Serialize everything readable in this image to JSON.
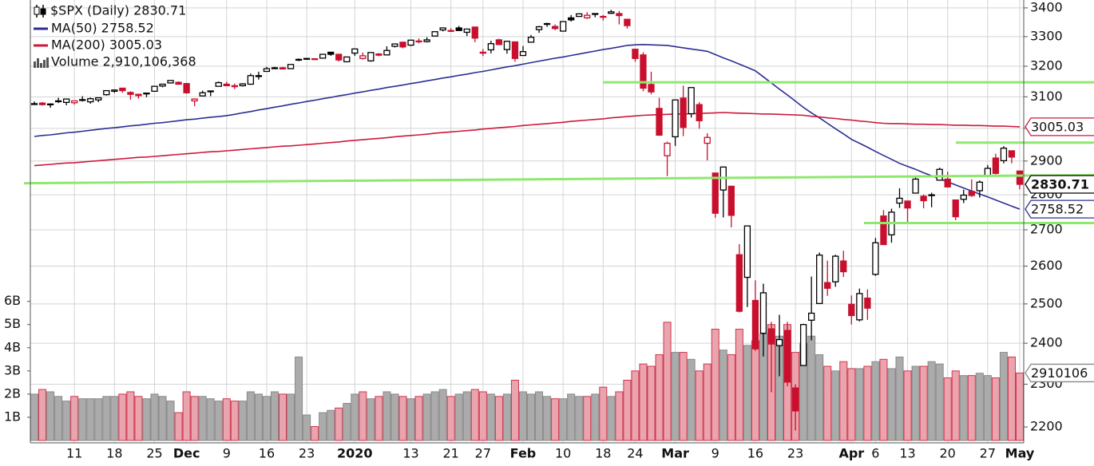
{
  "chart_data": {
    "type": "candlestick",
    "categories": [
      null,
      null,
      null,
      null,
      null,
      "11",
      null,
      null,
      null,
      null,
      "18",
      null,
      null,
      null,
      null,
      "25",
      null,
      null,
      null,
      "Dec",
      null,
      null,
      null,
      null,
      "9",
      null,
      null,
      null,
      null,
      "16",
      null,
      null,
      null,
      null,
      "23",
      null,
      null,
      null,
      null,
      null,
      "2020",
      null,
      null,
      null,
      null,
      null,
      null,
      "13",
      null,
      null,
      null,
      null,
      "21",
      null,
      null,
      null,
      "27",
      null,
      null,
      null,
      null,
      "Feb",
      null,
      null,
      null,
      null,
      "10",
      null,
      null,
      null,
      null,
      "18",
      null,
      null,
      null,
      "24",
      null,
      null,
      null,
      null,
      "Mar",
      null,
      null,
      null,
      null,
      "9",
      null,
      null,
      null,
      null,
      "16",
      null,
      null,
      null,
      null,
      "23",
      null,
      null,
      null,
      null,
      null,
      null,
      "Apr",
      null,
      null,
      "6",
      null,
      null,
      null,
      "13",
      null,
      null,
      null,
      null,
      "20",
      null,
      null,
      null,
      null,
      "27",
      null,
      null,
      null,
      "May"
    ],
    "price": {
      "name": "$SPX (Daily) 2830.71",
      "tag": "2830.71",
      "up_color": "#000000",
      "down_color": "#c8102e",
      "ohlc": [
        [
          3078,
          3085,
          3074,
          3078
        ],
        [
          3080,
          3083,
          3072,
          3075
        ],
        [
          3076,
          3079,
          3065,
          3077
        ],
        [
          3087,
          3097,
          3080,
          3085
        ],
        [
          3082,
          3093,
          3073,
          3093
        ],
        [
          3081,
          3088,
          3075,
          3087
        ],
        [
          3089,
          3102,
          3085,
          3091
        ],
        [
          3084,
          3098,
          3078,
          3094
        ],
        [
          3090,
          3098,
          3083,
          3097
        ],
        [
          3107,
          3120,
          3104,
          3120
        ],
        [
          3118,
          3124,
          3113,
          3122
        ],
        [
          3128,
          3128,
          3113,
          3120
        ],
        [
          3114,
          3118,
          3091,
          3108
        ],
        [
          3108,
          3110,
          3094,
          3104
        ],
        [
          3112,
          3113,
          3099,
          3110
        ],
        [
          3118,
          3134,
          3117,
          3134
        ],
        [
          3135,
          3142,
          3131,
          3141
        ],
        [
          3145,
          3154,
          3143,
          3153
        ],
        [
          3147,
          3150,
          3139,
          3141
        ],
        [
          3143,
          3145,
          3110,
          3113
        ],
        [
          3087,
          3095,
          3070,
          3093
        ],
        [
          3103,
          3120,
          3102,
          3113
        ],
        [
          3119,
          3120,
          3102,
          3117
        ],
        [
          3134,
          3150,
          3134,
          3146
        ],
        [
          3141,
          3149,
          3135,
          3136
        ],
        [
          3136,
          3143,
          3125,
          3133
        ],
        [
          3136,
          3144,
          3133,
          3142
        ],
        [
          3141,
          3176,
          3139,
          3169
        ],
        [
          3166,
          3182,
          3156,
          3169
        ],
        [
          3183,
          3198,
          3182,
          3192
        ],
        [
          3195,
          3198,
          3191,
          3192
        ],
        [
          3195,
          3198,
          3191,
          3191
        ],
        [
          3192,
          3206,
          3192,
          3206
        ],
        [
          3223,
          3226,
          3217,
          3221
        ],
        [
          3226,
          3227,
          3222,
          3224
        ],
        [
          3225,
          3226,
          3221,
          3223
        ],
        [
          3227,
          3240,
          3227,
          3240
        ],
        [
          3247,
          3247,
          3235,
          3240
        ],
        [
          3240,
          3240,
          3216,
          3221
        ],
        [
          3215,
          3231,
          3213,
          3231
        ],
        [
          3244,
          3258,
          3235,
          3258
        ],
        [
          3226,
          3246,
          3222,
          3235
        ],
        [
          3218,
          3246,
          3215,
          3246
        ],
        [
          3241,
          3244,
          3233,
          3237
        ],
        [
          3238,
          3267,
          3236,
          3253
        ],
        [
          3267,
          3275,
          3263,
          3275
        ],
        [
          3281,
          3282,
          3260,
          3265
        ],
        [
          3271,
          3288,
          3268,
          3288
        ],
        [
          3285,
          3294,
          3277,
          3283
        ],
        [
          3283,
          3298,
          3280,
          3289
        ],
        [
          3302,
          3317,
          3302,
          3317
        ],
        [
          3323,
          3330,
          3318,
          3330
        ],
        [
          3321,
          3329,
          3316,
          3321
        ],
        [
          3330,
          3337,
          3321,
          3321
        ],
        [
          3315,
          3326,
          3302,
          3326
        ],
        [
          3333,
          3334,
          3281,
          3295
        ],
        [
          3247,
          3258,
          3234,
          3244
        ],
        [
          3255,
          3286,
          3243,
          3276
        ],
        [
          3289,
          3293,
          3271,
          3273
        ],
        [
          3256,
          3286,
          3242,
          3284
        ],
        [
          3282,
          3282,
          3215,
          3226
        ],
        [
          3236,
          3268,
          3235,
          3249
        ],
        [
          3281,
          3306,
          3281,
          3298
        ],
        [
          3324,
          3337,
          3313,
          3334
        ],
        [
          3344,
          3348,
          3334,
          3345
        ],
        [
          3335,
          3342,
          3322,
          3328
        ],
        [
          3319,
          3352,
          3317,
          3352
        ],
        [
          3365,
          3375,
          3352,
          3358
        ],
        [
          3370,
          3381,
          3369,
          3379
        ],
        [
          3365,
          3385,
          3361,
          3374
        ],
        [
          3378,
          3381,
          3367,
          3380
        ],
        [
          3370,
          3375,
          3356,
          3370
        ],
        [
          3381,
          3393,
          3379,
          3386
        ],
        [
          3380,
          3389,
          3342,
          3373
        ],
        [
          3360,
          3360,
          3328,
          3338
        ],
        [
          3257,
          3259,
          3215,
          3226
        ],
        [
          3238,
          3247,
          3118,
          3128
        ],
        [
          3140,
          3182,
          3108,
          3116
        ],
        [
          3063,
          3097,
          2977,
          2979
        ],
        [
          2916,
          2959,
          2855,
          2954
        ],
        [
          2974,
          3091,
          2946,
          3090
        ],
        [
          3096,
          3136,
          2976,
          3003
        ],
        [
          3046,
          3130,
          3034,
          3130
        ],
        [
          3075,
          3083,
          2999,
          3024
        ],
        [
          2954,
          2985,
          2902,
          2972
        ],
        [
          2864,
          2864,
          2734,
          2747
        ],
        [
          2814,
          2883,
          2735,
          2882
        ],
        [
          2825,
          2825,
          2707,
          2741
        ],
        [
          2631,
          2660,
          2478,
          2481
        ],
        [
          2570,
          2711,
          2492,
          2711
        ],
        [
          2509,
          2562,
          2381,
          2386
        ],
        [
          2425,
          2553,
          2367,
          2529
        ],
        [
          2436,
          2454,
          2281,
          2398
        ],
        [
          2394,
          2472,
          2319,
          2409
        ],
        [
          2432,
          2454,
          2295,
          2305
        ],
        [
          2291,
          2300,
          2192,
          2237
        ],
        [
          2345,
          2449,
          2345,
          2447
        ],
        [
          2458,
          2572,
          2407,
          2476
        ],
        [
          2501,
          2637,
          2501,
          2630
        ],
        [
          2556,
          2615,
          2521,
          2541
        ],
        [
          2558,
          2631,
          2545,
          2627
        ],
        [
          2614,
          2642,
          2571,
          2585
        ],
        [
          2499,
          2522,
          2447,
          2470
        ],
        [
          2459,
          2540,
          2455,
          2527
        ],
        [
          2515,
          2538,
          2459,
          2489
        ],
        [
          2578,
          2677,
          2574,
          2664
        ],
        [
          2739,
          2756,
          2658,
          2659
        ],
        [
          2686,
          2760,
          2664,
          2750
        ],
        [
          2776,
          2819,
          2762,
          2790
        ],
        [
          2782,
          2782,
          2721,
          2762
        ],
        [
          2805,
          2851,
          2805,
          2846
        ],
        [
          2796,
          2801,
          2761,
          2783
        ],
        [
          2800,
          2806,
          2764,
          2800
        ],
        [
          2843,
          2880,
          2843,
          2875
        ],
        [
          2846,
          2868,
          2821,
          2823
        ],
        [
          2785,
          2786,
          2727,
          2737
        ],
        [
          2787,
          2815,
          2776,
          2799
        ],
        [
          2810,
          2845,
          2794,
          2798
        ],
        [
          2812,
          2842,
          2792,
          2837
        ],
        [
          2855,
          2888,
          2852,
          2878
        ],
        [
          2909,
          2922,
          2860,
          2863
        ],
        [
          2901,
          2945,
          2893,
          2939
        ],
        [
          2931,
          2931,
          2893,
          2912
        ],
        [
          2870,
          2870,
          2816,
          2830.71
        ]
      ]
    },
    "series": [
      {
        "name": "MA(50) 2758.52",
        "tag": "2758.52",
        "color": "#2b2f92",
        "values": [
          2975,
          2978,
          2980,
          2983,
          2986,
          2988,
          2991,
          2994,
          2997,
          3000,
          3002,
          3005,
          3008,
          3010,
          3013,
          3016,
          3018,
          3021,
          3024,
          3027,
          3029,
          3032,
          3035,
          3037,
          3040,
          3044,
          3049,
          3053,
          3058,
          3062,
          3067,
          3071,
          3076,
          3080,
          3085,
          3089,
          3094,
          3098,
          3103,
          3107,
          3112,
          3116,
          3121,
          3125,
          3130,
          3134,
          3138,
          3143,
          3147,
          3152,
          3156,
          3161,
          3165,
          3170,
          3174,
          3179,
          3183,
          3188,
          3193,
          3198,
          3202,
          3207,
          3212,
          3217,
          3222,
          3227,
          3231,
          3236,
          3241,
          3246,
          3251,
          3256,
          3260,
          3265,
          3270,
          3272,
          3273,
          3272,
          3271,
          3270,
          3266,
          3262,
          3258,
          3254,
          3250,
          3239,
          3228,
          3218,
          3207,
          3196,
          3185,
          3165,
          3145,
          3125,
          3106,
          3086,
          3066,
          3049,
          3033,
          3016,
          2999,
          2983,
          2966,
          2954,
          2942,
          2929,
          2917,
          2905,
          2893,
          2884,
          2875,
          2865,
          2856,
          2847,
          2838,
          2829,
          2820,
          2811,
          2802,
          2794,
          2785,
          2776,
          2767,
          2758.52
        ]
      },
      {
        "name": "MA(200) 3005.03",
        "tag": "3005.03",
        "color": "#cc1a3a",
        "values": [
          2886,
          2888,
          2890,
          2892,
          2894,
          2895,
          2897,
          2899,
          2901,
          2903,
          2905,
          2907,
          2909,
          2911,
          2912,
          2914,
          2916,
          2918,
          2920,
          2922,
          2924,
          2926,
          2928,
          2929,
          2931,
          2933,
          2935,
          2937,
          2939,
          2941,
          2943,
          2945,
          2946,
          2948,
          2950,
          2952,
          2954,
          2956,
          2958,
          2961,
          2963,
          2965,
          2967,
          2969,
          2971,
          2974,
          2976,
          2978,
          2980,
          2982,
          2985,
          2987,
          2989,
          2991,
          2993,
          2995,
          2998,
          3000,
          3002,
          3004,
          3006,
          3009,
          3011,
          3013,
          3015,
          3017,
          3019,
          3022,
          3024,
          3026,
          3028,
          3030,
          3033,
          3035,
          3037,
          3039,
          3041,
          3042,
          3043,
          3044,
          3045,
          3045,
          3046,
          3047,
          3048,
          3049,
          3050,
          3049,
          3048,
          3047,
          3046,
          3045,
          3045,
          3044,
          3043,
          3042,
          3041,
          3038,
          3036,
          3033,
          3031,
          3028,
          3026,
          3023,
          3021,
          3018,
          3016,
          3015,
          3015,
          3014,
          3013,
          3013,
          3012,
          3012,
          3011,
          3010,
          3010,
          3009,
          3009,
          3008,
          3007,
          3007,
          3006,
          3005.03
        ]
      }
    ],
    "volume": {
      "name": "Volume 2,910,106,368",
      "tag": "2910106",
      "up_color": "#ababab",
      "up_stroke": "#8a8a8a",
      "down_color": "#eaa4ad",
      "down_stroke": "#d0364f",
      "ylim": [
        0,
        19
      ],
      "yticks": [
        {
          "value": 1,
          "label": "1B"
        },
        {
          "value": 2,
          "label": "2B"
        },
        {
          "value": 3,
          "label": "3B"
        },
        {
          "value": 4,
          "label": "4B"
        },
        {
          "value": 5,
          "label": "5B"
        },
        {
          "value": 6,
          "label": "6B"
        }
      ],
      "values": [
        2.0,
        2.2,
        2.1,
        1.9,
        1.7,
        1.9,
        1.8,
        1.8,
        1.8,
        1.9,
        1.9,
        2.0,
        2.1,
        1.9,
        1.8,
        2.0,
        1.9,
        1.7,
        1.2,
        2.1,
        1.9,
        1.9,
        1.8,
        1.7,
        1.8,
        1.7,
        1.7,
        2.1,
        2.0,
        1.9,
        2.1,
        2.0,
        2.0,
        3.6,
        1.1,
        0.6,
        1.2,
        1.3,
        1.4,
        1.6,
        2.0,
        2.1,
        1.8,
        1.9,
        2.1,
        2.0,
        1.9,
        1.8,
        1.9,
        2.0,
        2.1,
        2.2,
        1.9,
        2.0,
        2.1,
        2.2,
        2.1,
        2.0,
        1.9,
        2.0,
        2.6,
        2.1,
        2.0,
        2.1,
        1.9,
        1.8,
        1.8,
        2.0,
        1.9,
        1.9,
        2.0,
        2.3,
        1.9,
        2.1,
        2.6,
        3.0,
        3.3,
        3.2,
        3.7,
        5.1,
        3.8,
        3.8,
        3.5,
        3.0,
        3.3,
        4.8,
        3.9,
        3.7,
        4.8,
        4.1,
        4.3,
        4.6,
        5.0,
        4.5,
        5.0,
        3.8,
        4.2,
        4.5,
        3.7,
        3.2,
        3.0,
        3.4,
        3.1,
        3.1,
        3.2,
        3.4,
        3.5,
        3.1,
        3.6,
        3.0,
        3.2,
        3.2,
        3.4,
        3.3,
        2.7,
        3.0,
        2.8,
        2.8,
        2.9,
        2.8,
        2.7,
        3.8,
        3.6,
        2.910106368
      ]
    },
    "ylim": [
      2164,
      3428
    ],
    "yticks": [
      2200,
      2300,
      2400,
      2500,
      2600,
      2700,
      2800,
      2900,
      3000,
      3100,
      3200,
      3300,
      3400
    ],
    "log_scale": true,
    "grid": true,
    "trend_lines": [
      {
        "color": "#8ee86e",
        "values": [
          3147,
          3147
        ]
      },
      {
        "color": "#8ee86e",
        "values": [
          2834,
          2858
        ]
      },
      {
        "color": "#8ee86e",
        "values": [
          2956,
          2956
        ]
      },
      {
        "color": "#8ee86e",
        "values": [
          2719,
          2719
        ]
      }
    ]
  }
}
